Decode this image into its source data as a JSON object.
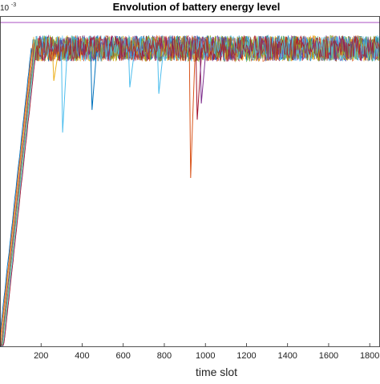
{
  "chart_data": {
    "type": "line",
    "title": "Envolution of battery energy level",
    "xlabel": "time slot",
    "ylabel": "",
    "exponent_label": "10",
    "exponent_power": "-3",
    "xlim": [
      0,
      1850
    ],
    "x_ticks": [
      200,
      400,
      600,
      800,
      1000,
      1200,
      1400,
      1600,
      1800
    ],
    "x_tick_labels": [
      "200",
      "400",
      "600",
      "800",
      "1000",
      "1200",
      "1400",
      "1600",
      "1800"
    ],
    "ylim": [
      0,
      1.02
    ],
    "capacity_level": 1.0,
    "saturation_band": [
      0.88,
      0.96
    ],
    "ramp": {
      "start_x": 0,
      "start_y": 0.0,
      "end_x": 160,
      "end_y": 0.93
    },
    "grid": false,
    "legend": "none",
    "series_colors": [
      "#0072BD",
      "#D95319",
      "#EDB120",
      "#7E2F8E",
      "#77AC30",
      "#4DBEEE",
      "#A2142F"
    ],
    "capacity_color": "#B565C9",
    "dips": [
      {
        "x": 262,
        "y": 0.82,
        "color": "#EDB120"
      },
      {
        "x": 305,
        "y": 0.66,
        "color": "#4DBEEE"
      },
      {
        "x": 448,
        "y": 0.73,
        "color": "#0072BD"
      },
      {
        "x": 632,
        "y": 0.8,
        "color": "#4DBEEE"
      },
      {
        "x": 773,
        "y": 0.78,
        "color": "#4DBEEE"
      },
      {
        "x": 928,
        "y": 0.52,
        "color": "#D95319"
      },
      {
        "x": 960,
        "y": 0.7,
        "color": "#A2142F"
      },
      {
        "x": 980,
        "y": 0.75,
        "color": "#7E2F8E"
      }
    ]
  }
}
